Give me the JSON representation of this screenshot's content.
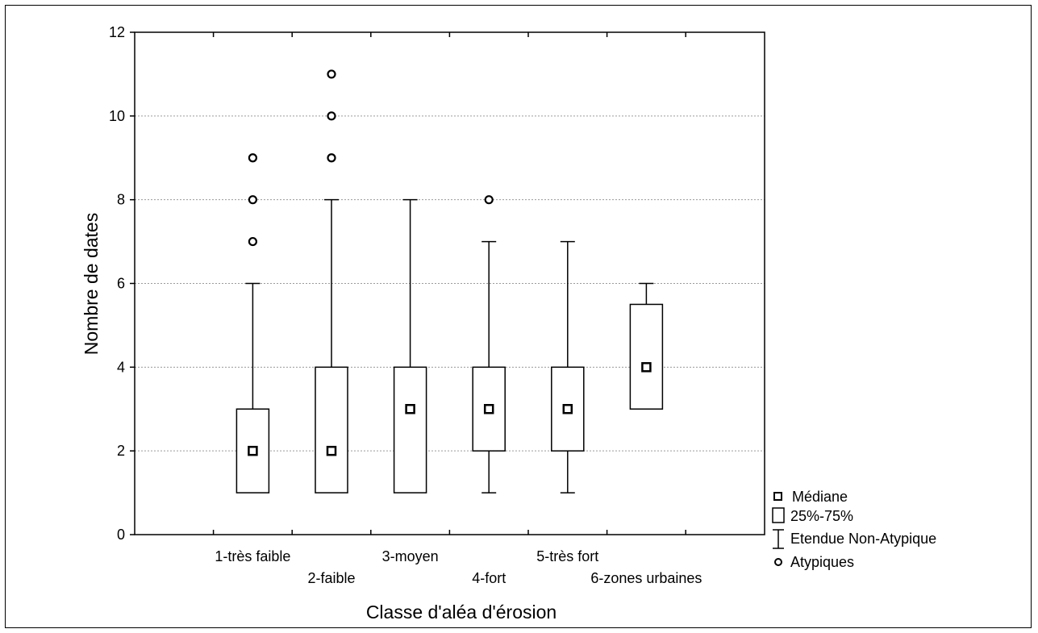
{
  "chart_data": {
    "type": "boxplot",
    "xlabel": "Classe d'aléa d'érosion",
    "ylabel": "Nombre de dates",
    "ylim": [
      0,
      12
    ],
    "yticks": [
      "0",
      "2",
      "4",
      "6",
      "8",
      "10",
      "12"
    ],
    "grid": "horizontal dotted",
    "legend_position": "right-bottom",
    "categories": [
      {
        "label": "1-très faible",
        "median": 2,
        "q1": 1,
        "q3": 3,
        "whisker_low": 1,
        "whisker_high": 6,
        "outliers": [
          7,
          8,
          9
        ]
      },
      {
        "label": "2-faible",
        "median": 2,
        "q1": 1,
        "q3": 4,
        "whisker_low": 1,
        "whisker_high": 8,
        "outliers": [
          9,
          10,
          11
        ]
      },
      {
        "label": "3-moyen",
        "median": 3,
        "q1": 1,
        "q3": 4,
        "whisker_low": 1,
        "whisker_high": 8,
        "outliers": []
      },
      {
        "label": "4-fort",
        "median": 3,
        "q1": 2,
        "q3": 4,
        "whisker_low": 1,
        "whisker_high": 7,
        "outliers": [
          8
        ]
      },
      {
        "label": "5-très fort",
        "median": 3,
        "q1": 2,
        "q3": 4,
        "whisker_low": 1,
        "whisker_high": 7,
        "outliers": []
      },
      {
        "label": "6-zones urbaines",
        "median": 4,
        "q1": 3,
        "q3": 5.5,
        "whisker_low": 3,
        "whisker_high": 6,
        "outliers": []
      }
    ],
    "legend": [
      {
        "symbol": "median-square",
        "label": "Médiane"
      },
      {
        "symbol": "box",
        "label": "25%-75%"
      },
      {
        "symbol": "whisker",
        "label": "Etendue Non-Atypique"
      },
      {
        "symbol": "outlier-circle",
        "label": "Atypiques"
      }
    ]
  }
}
